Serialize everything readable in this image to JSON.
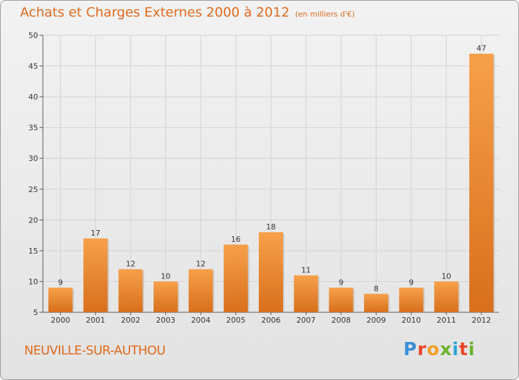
{
  "header": {
    "title": "Achats et Charges Externes 2000 à 2012",
    "subtitle": "(en milliers d'€)"
  },
  "footer": {
    "place": "NEUVILLE-SUR-AUTHOU",
    "logo": "Proxiti"
  },
  "colors": {
    "accent": "#e06a1e",
    "bar_top": "#f7a04a",
    "bar_bottom": "#d86f1c"
  },
  "chart_data": {
    "type": "bar",
    "categories": [
      "2000",
      "2001",
      "2002",
      "2003",
      "2004",
      "2005",
      "2006",
      "2007",
      "2008",
      "2009",
      "2010",
      "2011",
      "2012"
    ],
    "values": [
      9,
      17,
      12,
      10,
      12,
      16,
      18,
      11,
      9,
      8,
      9,
      10,
      47
    ],
    "title": "Achats et Charges Externes 2000 à 2012",
    "ylim": [
      5,
      50
    ],
    "yticks": [
      5,
      10,
      15,
      20,
      25,
      30,
      35,
      40,
      45,
      50
    ],
    "grid": true
  }
}
